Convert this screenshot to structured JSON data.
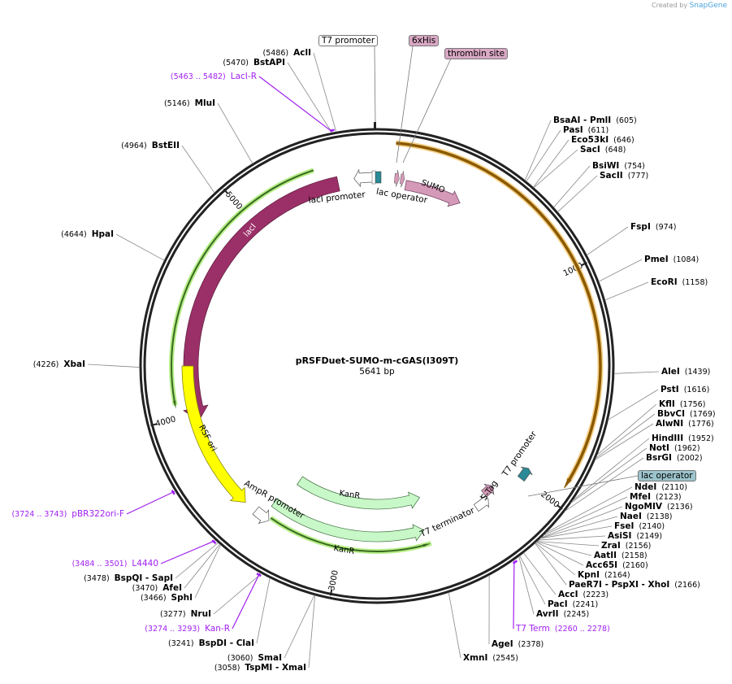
{
  "credit": {
    "prefix": "Created by",
    "brand": "SnapGene"
  },
  "plasmid": {
    "name": "pRSFDuet-SUMO-m-cGAS(I309T)",
    "length_label": "5641 bp",
    "length": 5641
  },
  "top_features": [
    {
      "label": "T7 promoter",
      "color": "#ffffff"
    },
    {
      "label": "6xHis",
      "color": "#d9a8c4"
    },
    {
      "label": "thrombin site",
      "color": "#d9a8c4"
    },
    {
      "label": "lac operator",
      "color": "#9cc4cc"
    }
  ],
  "features": {
    "lacI": "lacI",
    "sumo": "SUMO",
    "rsf_ori": "RSF ori",
    "kanr1": "KanR",
    "kanr2": "KanR",
    "ampr_promoter": "AmpR promoter",
    "laci_promoter": "lacI promoter",
    "lac_operator": "lac operator",
    "t7_terminator": "T7 terminator",
    "s_tag": "S-Tag",
    "t7_promoter": "T7 promoter"
  },
  "ticks": [
    "1000",
    "2000",
    "3000",
    "4000",
    "5000"
  ],
  "sites_right": [
    {
      "label": "BsaAI  - PmlI",
      "pos": "(605)",
      "bp": 605
    },
    {
      "label": "PasI",
      "pos": "(611)",
      "bp": 611
    },
    {
      "label": "Eco53kI",
      "pos": "(646)",
      "bp": 646
    },
    {
      "label": "SacI",
      "pos": "(648)",
      "bp": 648
    },
    {
      "label": "BsiWI",
      "pos": "(754)",
      "bp": 754
    },
    {
      "label": "SacII",
      "pos": "(777)",
      "bp": 777
    },
    {
      "label": "FspI",
      "pos": "(974)",
      "bp": 974
    },
    {
      "label": "PmeI",
      "pos": "(1084)",
      "bp": 1084
    },
    {
      "label": "EcoRI",
      "pos": "(1158)",
      "bp": 1158
    },
    {
      "label": "AleI",
      "pos": "(1439)",
      "bp": 1439
    },
    {
      "label": "PstI",
      "pos": "(1616)",
      "bp": 1616
    },
    {
      "label": "KflI",
      "pos": "(1756)",
      "bp": 1756
    },
    {
      "label": "BbvCI",
      "pos": "(1769)",
      "bp": 1769
    },
    {
      "label": "AlwNI",
      "pos": "(1776)",
      "bp": 1776
    },
    {
      "label": "HindIII",
      "pos": "(1952)",
      "bp": 1952
    },
    {
      "label": "NotI",
      "pos": "(1962)",
      "bp": 1962
    },
    {
      "label": "BsrGI",
      "pos": "(2002)",
      "bp": 2002
    },
    {
      "label": "NdeI",
      "pos": "(2110)",
      "bp": 2110
    },
    {
      "label": "MfeI",
      "pos": "(2123)",
      "bp": 2123
    },
    {
      "label": "NgoMIV",
      "pos": "(2136)",
      "bp": 2136
    },
    {
      "label": "NaeI",
      "pos": "(2138)",
      "bp": 2138
    },
    {
      "label": "FseI",
      "pos": "(2140)",
      "bp": 2140
    },
    {
      "label": "AsiSI",
      "pos": "(2149)",
      "bp": 2149
    },
    {
      "label": "ZraI",
      "pos": "(2156)",
      "bp": 2156
    },
    {
      "label": "AatII",
      "pos": "(2158)",
      "bp": 2158
    },
    {
      "label": "Acc65I",
      "pos": "(2160)",
      "bp": 2160
    },
    {
      "label": "KpnI",
      "pos": "(2164)",
      "bp": 2164
    },
    {
      "label": "PaeR7I  - PspXI  - XhoI",
      "pos": "(2166)",
      "bp": 2166
    },
    {
      "label": "AccI",
      "pos": "(2223)",
      "bp": 2223
    },
    {
      "label": "PacI",
      "pos": "(2241)",
      "bp": 2241
    },
    {
      "label": "AvrII",
      "pos": "(2245)",
      "bp": 2245
    },
    {
      "label": "T7 Term",
      "pos": "(2260 .. 2278)",
      "bp": 2269,
      "primer": true
    },
    {
      "label": "AgeI",
      "pos": "(2378)",
      "bp": 2378
    },
    {
      "label": "XmnI",
      "pos": "(2545)",
      "bp": 2545
    }
  ],
  "sites_left": [
    {
      "label": "AclI",
      "pos": "(5486)",
      "bp": 5486
    },
    {
      "label": "BstAPI",
      "pos": "(5470)",
      "bp": 5470
    },
    {
      "label": "LacI-R",
      "pos": "(5463 .. 5482)",
      "bp": 5472,
      "primer": true
    },
    {
      "label": "MluI",
      "pos": "(5146)",
      "bp": 5146
    },
    {
      "label": "BstEII",
      "pos": "(4964)",
      "bp": 4964
    },
    {
      "label": "HpaI",
      "pos": "(4644)",
      "bp": 4644
    },
    {
      "label": "XbaI",
      "pos": "(4226)",
      "bp": 4226
    },
    {
      "label": "pBR322ori-F",
      "pos": "(3724 .. 3743)",
      "bp": 3733,
      "primer": true
    },
    {
      "label": "L4440",
      "pos": "(3484 .. 3501)",
      "bp": 3492,
      "primer": true
    },
    {
      "label": "BspQI  - SapI",
      "pos": "(3478)",
      "bp": 3478
    },
    {
      "label": "AfeI",
      "pos": "(3470)",
      "bp": 3470
    },
    {
      "label": "SphI",
      "pos": "(3466)",
      "bp": 3466
    },
    {
      "label": "NruI",
      "pos": "(3277)",
      "bp": 3277
    },
    {
      "label": "Kan-R",
      "pos": "(3274 .. 3293)",
      "bp": 3283,
      "primer": true
    },
    {
      "label": "BspDI  - ClaI",
      "pos": "(3241)",
      "bp": 3241
    },
    {
      "label": "SmaI",
      "pos": "(3060)",
      "bp": 3060
    },
    {
      "label": "TspMI  - XmaI",
      "pos": "(3058)",
      "bp": 3058
    }
  ],
  "colors": {
    "primer": "#a020f0",
    "lacI": "#9b3068",
    "sumo": "#d59ab8",
    "orf": "#f5c46a",
    "rsf": "#ffff00",
    "kan": "#c8f7c8",
    "lac_operator": "#2a8a96"
  }
}
